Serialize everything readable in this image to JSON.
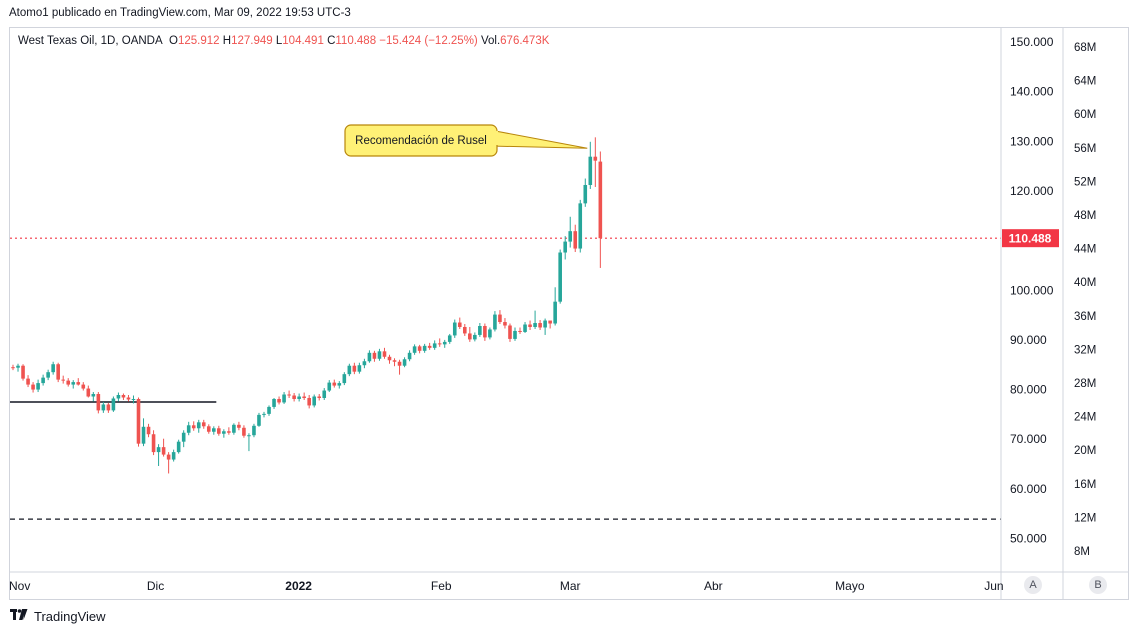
{
  "header": {
    "publisher": "Atomo1 publicado en TradingView.com, Mar 09, 2022 19:53 UTC-3"
  },
  "legend": {
    "symbol": "West Texas Oil, 1D, OANDA",
    "open_label": "O",
    "open": "125.912",
    "high_label": "H",
    "high": "127.949",
    "low_label": "L",
    "low": "104.491",
    "close_label": "C",
    "close": "110.488",
    "change": "−15.424 (−12.25%)",
    "vol_label": "Vol.",
    "vol": "676.473K"
  },
  "annotation": {
    "text": "Recomendación de Rusel"
  },
  "price_tag": "110.488",
  "scale_buttons": {
    "a": "A",
    "b": "B"
  },
  "footer": {
    "brand": "TradingView",
    "logo": "tradingview-logo-icon"
  },
  "colors": {
    "up": "#26a69a",
    "down": "#ef5350",
    "price_line": "#f23645",
    "callout_fill": "#fff176",
    "callout_border": "#b8860b"
  },
  "chart_data": {
    "type": "candlestick",
    "ylim": [
      45,
      153
    ],
    "y_ticks": [
      "150.000",
      "140.000",
      "130.000",
      "120.000",
      "110.000",
      "100.000",
      "90.000",
      "80.000",
      "70.000",
      "60.000",
      "50.000"
    ],
    "y_tick_values": [
      150,
      140,
      130,
      120,
      110,
      100,
      90,
      80,
      70,
      60,
      50
    ],
    "volume_ticks": [
      "68M",
      "64M",
      "60M",
      "56M",
      "52M",
      "48M",
      "44M",
      "40M",
      "36M",
      "32M",
      "28M",
      "24M",
      "20M",
      "16M",
      "12M",
      "8M"
    ],
    "x_ticks": [
      {
        "label": "Nov",
        "index": 0,
        "bold": false
      },
      {
        "label": "Dic",
        "index": 28.4,
        "bold": false
      },
      {
        "label": "2022",
        "index": 56.9,
        "bold": true
      },
      {
        "label": "Feb",
        "index": 85.3,
        "bold": false
      },
      {
        "label": "Mar",
        "index": 111.0,
        "bold": false
      },
      {
        "label": "Abr",
        "index": 139.5,
        "bold": false
      },
      {
        "label": "Mayo",
        "index": 166.7,
        "bold": false
      },
      {
        "label": "Jun",
        "index": 195.4,
        "bold": false
      }
    ],
    "horizontal_lines": [
      {
        "value": 110.488,
        "style": "dotted",
        "color": "#f23645",
        "from_index": 0
      },
      {
        "value": 77.5,
        "style": "solid",
        "color": "#131722",
        "from_index": 0,
        "to_index": 40.5
      },
      {
        "value": 53.9,
        "style": "dashed",
        "color": "#131722",
        "from_index": 0
      }
    ],
    "candles": [
      [
        84.5,
        85.0,
        83.9,
        84.4
      ],
      [
        84.4,
        85.2,
        83.6,
        84.8
      ],
      [
        84.8,
        85.1,
        81.8,
        82.2
      ],
      [
        82.2,
        82.9,
        80.5,
        81.0
      ],
      [
        81.0,
        81.5,
        79.4,
        80.0
      ],
      [
        80.0,
        82.0,
        79.5,
        81.3
      ],
      [
        81.3,
        83.0,
        80.8,
        82.4
      ],
      [
        82.4,
        84.0,
        81.9,
        83.5
      ],
      [
        83.5,
        85.6,
        83.0,
        85.1
      ],
      [
        85.1,
        85.4,
        81.5,
        82.0
      ],
      [
        82.0,
        82.8,
        81.2,
        81.8
      ],
      [
        81.8,
        82.3,
        80.6,
        81.0
      ],
      [
        81.0,
        81.9,
        80.2,
        81.5
      ],
      [
        81.5,
        82.3,
        80.8,
        81.0
      ],
      [
        81.0,
        81.5,
        79.8,
        80.2
      ],
      [
        80.2,
        80.8,
        78.4,
        78.6
      ],
      [
        78.6,
        79.5,
        77.6,
        79.1
      ],
      [
        79.1,
        79.5,
        75.2,
        75.8
      ],
      [
        75.8,
        77.5,
        75.3,
        77.0
      ],
      [
        77.0,
        77.3,
        75.3,
        75.8
      ],
      [
        75.8,
        78.6,
        75.5,
        78.2
      ],
      [
        78.2,
        79.4,
        77.6,
        78.9
      ],
      [
        78.9,
        79.2,
        77.9,
        78.4
      ],
      [
        78.4,
        78.9,
        77.6,
        78.0
      ],
      [
        78.0,
        78.8,
        77.2,
        78.1
      ],
      [
        78.1,
        78.4,
        68.5,
        69.1
      ],
      [
        69.1,
        74.2,
        68.6,
        72.5
      ],
      [
        72.5,
        73.1,
        70.4,
        71.0
      ],
      [
        71.0,
        71.8,
        66.8,
        67.4
      ],
      [
        67.4,
        69.0,
        64.6,
        68.4
      ],
      [
        68.4,
        70.1,
        66.5,
        66.9
      ],
      [
        66.9,
        67.4,
        63.1,
        65.9
      ],
      [
        65.9,
        67.9,
        65.5,
        67.4
      ],
      [
        67.4,
        69.9,
        67.1,
        69.5
      ],
      [
        69.5,
        71.8,
        68.4,
        71.3
      ],
      [
        71.3,
        73.5,
        70.8,
        72.8
      ],
      [
        72.8,
        73.6,
        71.7,
        72.2
      ],
      [
        72.2,
        73.9,
        71.3,
        73.4
      ],
      [
        73.4,
        73.9,
        72.1,
        72.6
      ],
      [
        72.6,
        73.0,
        71.1,
        71.5
      ],
      [
        71.5,
        72.6,
        70.9,
        72.2
      ],
      [
        72.2,
        72.7,
        70.7,
        71.1
      ],
      [
        71.1,
        72.0,
        70.3,
        71.6
      ],
      [
        71.6,
        72.4,
        70.9,
        71.3
      ],
      [
        71.3,
        73.2,
        70.9,
        72.9
      ],
      [
        72.9,
        73.5,
        71.8,
        72.3
      ],
      [
        72.3,
        72.8,
        70.3,
        70.7
      ],
      [
        70.7,
        71.2,
        67.6,
        70.8
      ],
      [
        70.8,
        73.1,
        70.4,
        72.7
      ],
      [
        72.7,
        75.3,
        72.5,
        74.9
      ],
      [
        74.9,
        75.5,
        74.4,
        75.1
      ],
      [
        75.1,
        76.8,
        74.7,
        76.5
      ],
      [
        76.5,
        78.3,
        76.1,
        78.1
      ],
      [
        78.1,
        78.6,
        77.0,
        77.4
      ],
      [
        77.4,
        79.5,
        77.1,
        79.0
      ],
      [
        79.0,
        79.8,
        78.3,
        78.8
      ],
      [
        78.8,
        79.3,
        77.6,
        78.1
      ],
      [
        78.1,
        79.2,
        77.6,
        78.6
      ],
      [
        78.6,
        79.4,
        77.9,
        78.3
      ],
      [
        78.3,
        78.9,
        76.2,
        76.8
      ],
      [
        76.8,
        79.0,
        76.4,
        78.6
      ],
      [
        78.6,
        79.1,
        77.8,
        78.3
      ],
      [
        78.3,
        80.3,
        77.9,
        79.8
      ],
      [
        79.8,
        81.9,
        79.5,
        81.4
      ],
      [
        81.4,
        82.0,
        80.4,
        80.8
      ],
      [
        80.8,
        81.7,
        80.2,
        81.3
      ],
      [
        81.3,
        83.5,
        80.9,
        83.1
      ],
      [
        83.1,
        85.2,
        82.7,
        84.8
      ],
      [
        84.8,
        85.4,
        83.1,
        83.6
      ],
      [
        83.6,
        85.4,
        83.2,
        84.9
      ],
      [
        84.9,
        86.2,
        84.3,
        85.7
      ],
      [
        85.7,
        87.9,
        85.4,
        87.4
      ],
      [
        87.4,
        87.8,
        85.6,
        86.2
      ],
      [
        86.2,
        88.2,
        85.8,
        87.7
      ],
      [
        87.7,
        88.4,
        86.2,
        86.6
      ],
      [
        86.6,
        87.0,
        85.2,
        85.9
      ],
      [
        85.9,
        86.3,
        84.7,
        85.6
      ],
      [
        85.6,
        86.0,
        83.0,
        84.8
      ],
      [
        84.8,
        86.5,
        84.5,
        86.1
      ],
      [
        86.1,
        87.9,
        85.7,
        87.4
      ],
      [
        87.4,
        89.1,
        87.0,
        88.7
      ],
      [
        88.7,
        89.0,
        87.3,
        87.8
      ],
      [
        87.8,
        89.2,
        87.4,
        88.8
      ],
      [
        88.8,
        89.4,
        88.0,
        88.4
      ],
      [
        88.4,
        89.9,
        88.0,
        89.3
      ],
      [
        89.3,
        90.3,
        88.6,
        89.1
      ],
      [
        89.1,
        90.0,
        88.4,
        89.6
      ],
      [
        89.6,
        91.2,
        89.2,
        90.9
      ],
      [
        90.9,
        94.1,
        90.4,
        93.5
      ],
      [
        93.5,
        94.5,
        92.2,
        92.6
      ],
      [
        92.6,
        93.2,
        90.8,
        91.3
      ],
      [
        91.3,
        92.6,
        89.6,
        90.1
      ],
      [
        90.1,
        91.5,
        89.7,
        91.0
      ],
      [
        91.0,
        93.4,
        90.6,
        92.8
      ],
      [
        92.8,
        93.3,
        89.8,
        90.5
      ],
      [
        90.5,
        92.5,
        90.1,
        92.1
      ],
      [
        92.1,
        95.8,
        91.7,
        95.1
      ],
      [
        95.1,
        96.0,
        93.2,
        93.6
      ],
      [
        93.6,
        94.4,
        92.3,
        92.9
      ],
      [
        92.9,
        93.3,
        89.6,
        90.2
      ],
      [
        90.2,
        92.5,
        89.8,
        91.8
      ],
      [
        91.8,
        92.5,
        91.2,
        91.6
      ],
      [
        91.6,
        93.6,
        91.4,
        93.1
      ],
      [
        93.1,
        93.9,
        92.0,
        92.6
      ],
      [
        92.6,
        95.9,
        92.2,
        93.4
      ],
      [
        93.4,
        94.0,
        92.0,
        92.5
      ],
      [
        92.5,
        94.3,
        91.0,
        93.9
      ],
      [
        93.9,
        93.8,
        92.3,
        93.3
      ],
      [
        93.3,
        100.6,
        92.9,
        97.7
      ],
      [
        97.7,
        108.2,
        97.3,
        107.6
      ],
      [
        107.6,
        110.9,
        106.2,
        109.8
      ],
      [
        109.8,
        114.8,
        108.6,
        111.9
      ],
      [
        111.9,
        113.2,
        107.7,
        108.4
      ],
      [
        108.4,
        118.2,
        107.6,
        117.5
      ],
      [
        117.5,
        122.5,
        116.8,
        121.2
      ],
      [
        121.2,
        129.9,
        120.4,
        126.9
      ],
      [
        126.9,
        130.8,
        120.8,
        126.1
      ],
      [
        125.912,
        127.949,
        104.491,
        110.488
      ]
    ]
  }
}
